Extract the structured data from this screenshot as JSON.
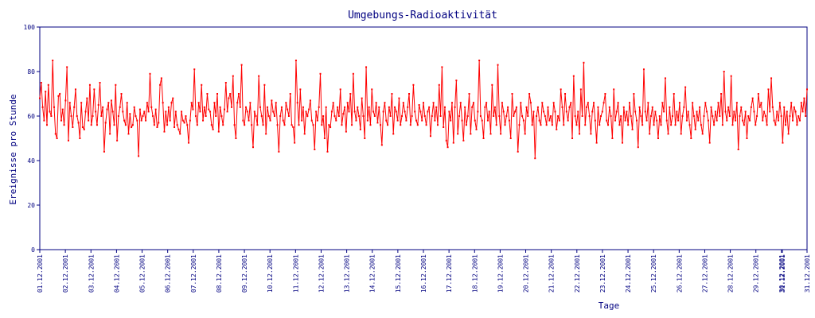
{
  "chart_data": {
    "type": "line",
    "title": "Umgebungs-Radioaktivität",
    "xlabel": "Tage",
    "ylabel": "Ereignisse pro Stunde",
    "ylim": [
      0,
      100
    ],
    "yticks": [
      0,
      20,
      40,
      60,
      80,
      100
    ],
    "xticks": [
      "01.12.2001",
      "02.12.2001",
      "03.12.2001",
      "04.12.2001",
      "05.12.2001",
      "06.12.2001",
      "07.12.2001",
      "08.12.2001",
      "09.12.2001",
      "10.12.2001",
      "11.12.2001",
      "12.12.2001",
      "13.12.2001",
      "14.12.2001",
      "15.12.2001",
      "16.12.2001",
      "17.12.2001",
      "18.12.2001",
      "19.12.2001",
      "20.12.2001",
      "21.12.2001",
      "22.12.2001",
      "23.12.2001",
      "24.12.2001",
      "25.12.2001",
      "26.12.2001",
      "27.12.2001",
      "28.12.2001",
      "29.12.2001",
      "30.12.2001",
      "31.12.2001",
      "31.12.2001"
    ],
    "grid": false,
    "legend": "none",
    "color": "#ff0000",
    "axis_color": "#000080",
    "series": [
      {
        "x_start": "01.12.2001 00:00",
        "x_step": "1 Stunde",
        "values": [
          68,
          75,
          64,
          58,
          71,
          56,
          74,
          62,
          60,
          85,
          64,
          52,
          50,
          69,
          70,
          58,
          63,
          56,
          67,
          82,
          49,
          66,
          60,
          55,
          64,
          72,
          60,
          57,
          50,
          66,
          55,
          54,
          62,
          68,
          58,
          74,
          56,
          60,
          72,
          62,
          56,
          65,
          75,
          60,
          64,
          44,
          57,
          63,
          66,
          52,
          67,
          62,
          56,
          74,
          49,
          60,
          64,
          70,
          62,
          58,
          56,
          66,
          52,
          61,
          55,
          56,
          64,
          60,
          58,
          42,
          63,
          58,
          60,
          62,
          58,
          66,
          62,
          79,
          64,
          60,
          56,
          63,
          55,
          57,
          74,
          77,
          66,
          53,
          62,
          56,
          64,
          58,
          66,
          68,
          55,
          62,
          56,
          54,
          52,
          62,
          58,
          57,
          60,
          56,
          48,
          58,
          66,
          63,
          81,
          60,
          56,
          66,
          62,
          74,
          58,
          64,
          60,
          70,
          63,
          62,
          56,
          54,
          66,
          60,
          70,
          53,
          64,
          60,
          56,
          63,
          75,
          62,
          68,
          70,
          64,
          78,
          56,
          50,
          66,
          70,
          64,
          83,
          58,
          56,
          64,
          62,
          58,
          66,
          56,
          46,
          62,
          60,
          56,
          78,
          64,
          60,
          56,
          74,
          52,
          64,
          60,
          58,
          67,
          62,
          60,
          66,
          56,
          44,
          60,
          64,
          58,
          56,
          66,
          63,
          60,
          70,
          56,
          55,
          48,
          85,
          66,
          56,
          72,
          58,
          64,
          52,
          62,
          60,
          63,
          67,
          58,
          56,
          45,
          62,
          58,
          64,
          79,
          56,
          60,
          50,
          64,
          44,
          56,
          55,
          62,
          66,
          60,
          58,
          64,
          60,
          72,
          56,
          61,
          64,
          53,
          66,
          62,
          70,
          56,
          79,
          62,
          58,
          64,
          60,
          54,
          68,
          60,
          50,
          82,
          58,
          64,
          56,
          72,
          62,
          60,
          66,
          57,
          64,
          56,
          47,
          62,
          66,
          58,
          56,
          64,
          60,
          70,
          52,
          64,
          62,
          58,
          68,
          56,
          60,
          66,
          62,
          58,
          64,
          70,
          56,
          60,
          74,
          62,
          58,
          56,
          65,
          62,
          58,
          66,
          60,
          56,
          62,
          64,
          51,
          60,
          66,
          58,
          64,
          56,
          74,
          60,
          82,
          55,
          64,
          49,
          46,
          62,
          58,
          66,
          48,
          64,
          76,
          52,
          60,
          66,
          58,
          49,
          64,
          56,
          60,
          70,
          52,
          64,
          66,
          58,
          54,
          62,
          85,
          60,
          58,
          50,
          64,
          66,
          58,
          62,
          52,
          74,
          60,
          64,
          56,
          83,
          60,
          52,
          66,
          62,
          56,
          60,
          64,
          58,
          50,
          70,
          60,
          62,
          64,
          44,
          56,
          66,
          60,
          58,
          52,
          64,
          60,
          70,
          66,
          56,
          62,
          41,
          60,
          64,
          58,
          56,
          66,
          62,
          60,
          56,
          64,
          58,
          60,
          56,
          66,
          62,
          54,
          60,
          58,
          72,
          64,
          56,
          70,
          62,
          58,
          64,
          66,
          50,
          78,
          60,
          56,
          62,
          52,
          72,
          60,
          84,
          56,
          64,
          66,
          60,
          52,
          62,
          66,
          58,
          48,
          64,
          56,
          60,
          62,
          66,
          70,
          58,
          56,
          64,
          60,
          50,
          72,
          58,
          62,
          66,
          56,
          60,
          48,
          64,
          58,
          62,
          56,
          66,
          60,
          54,
          70,
          62,
          58,
          46,
          64,
          60,
          56,
          81,
          62,
          58,
          66,
          52,
          60,
          64,
          56,
          62,
          58,
          50,
          60,
          56,
          66,
          62,
          77,
          58,
          52,
          64,
          56,
          60,
          70,
          56,
          62,
          58,
          66,
          52,
          60,
          64,
          73,
          58,
          62,
          56,
          50,
          66,
          60,
          54,
          62,
          58,
          64,
          56,
          52,
          60,
          66,
          62,
          58,
          48,
          64,
          60,
          56,
          62,
          58,
          66,
          60,
          70,
          56,
          80,
          62,
          58,
          64,
          60,
          78,
          56,
          62,
          58,
          66,
          45,
          60,
          64,
          58,
          56,
          62,
          50,
          60,
          58,
          64,
          68,
          62,
          56,
          60,
          70,
          64,
          66,
          58,
          62,
          60,
          56,
          72,
          62,
          77,
          64,
          58,
          56,
          62,
          58,
          66,
          60,
          48,
          64,
          56,
          62,
          52,
          60,
          66,
          58,
          64,
          62,
          56,
          60,
          58,
          66,
          62,
          68,
          60,
          72
        ]
      }
    ]
  }
}
